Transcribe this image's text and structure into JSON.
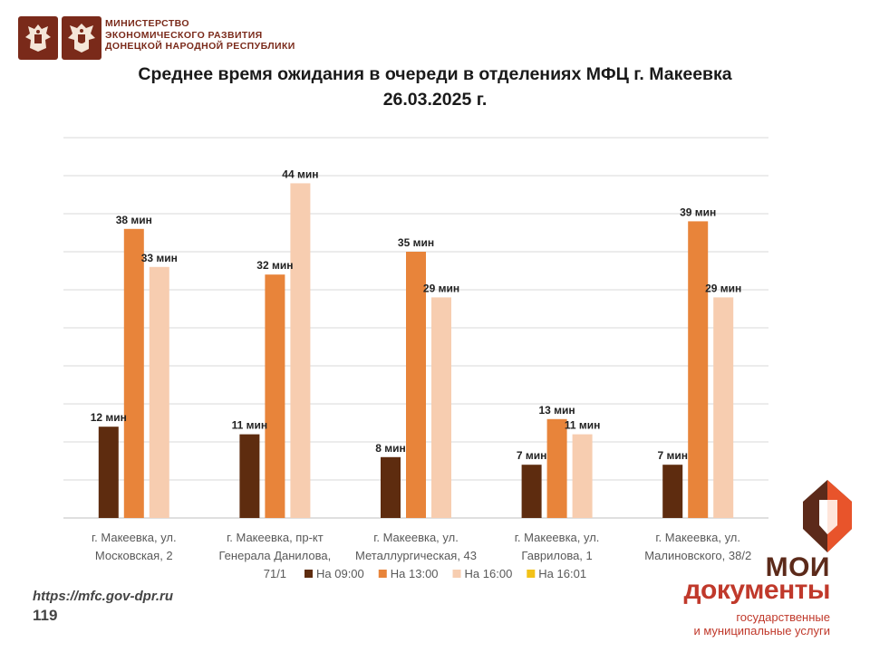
{
  "header": {
    "ministry_lines": [
      "МИНИСТЕРСТВО",
      "ЭКОНОМИЧЕСКОГО РАЗВИТИЯ",
      "ДОНЕЦКОЙ НАРОДНОЙ РЕСПУБЛИКИ"
    ]
  },
  "footer": {
    "url": "https://mfc.gov-dpr.ru",
    "page_number": "119"
  },
  "brand": {
    "word1": "МОИ",
    "word2": "документы",
    "sub1": "государственные",
    "sub2": "и муниципальные услуги",
    "colors": {
      "dark": "#5c2a1a",
      "accent": "#e8542b",
      "red": "#c0392b"
    }
  },
  "chart_data": {
    "type": "bar",
    "title_lines": [
      "Среднее время ожидания в очереди в отделениях МФЦ г. Макеевка",
      "26.03.2025 г."
    ],
    "categories": [
      [
        "г. Макеевка, ул.",
        "Московская, 2"
      ],
      [
        "г. Макеевка, пр-кт",
        "Генерала Данилова,",
        "71/1"
      ],
      [
        "г. Макеевка, ул.",
        "Металлургическая, 43"
      ],
      [
        "г. Макеевка, ул.",
        "Гаврилова, 1"
      ],
      [
        "г. Макеевка, ул.",
        "Малиновского, 38/2"
      ]
    ],
    "series": [
      {
        "name": "На 09:00",
        "color": "#5e2c0f",
        "values": [
          12,
          11,
          8,
          7,
          7
        ]
      },
      {
        "name": "На 13:00",
        "color": "#e8843a",
        "values": [
          38,
          32,
          35,
          13,
          39
        ]
      },
      {
        "name": "На 16:00",
        "color": "#f7cdb0",
        "values": [
          33,
          44,
          29,
          11,
          29
        ]
      },
      {
        "name": "На 16:01",
        "color": "#f2c218",
        "values": [
          null,
          null,
          null,
          null,
          null
        ]
      }
    ],
    "value_suffix": " мин",
    "ylim": [
      0,
      50
    ],
    "grid": true,
    "legend_position": "bottom"
  }
}
